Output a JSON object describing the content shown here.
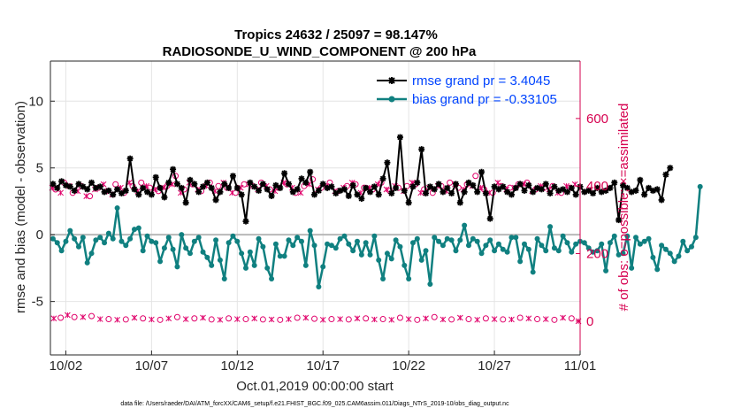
{
  "chart_data": {
    "type": "line",
    "title": "Tropics 24632 / 25097 = 98.147%",
    "subtitle": "RADIOSONDE_U_WIND_COMPONENT @ 200 hPa",
    "xlabel": "Oct.01,2019 00:00:00 start",
    "ylabel": "rmse and bias (model - observation)",
    "y2label": "# of obs: o=possible; ×=assimilated",
    "footer": "data file: /Users/raeder/DAI/ATM_forcXX/CAM6_setup/f.e21.FHIST_BGC.f09_025.CAM6assim.011/Diags_NTrS_2019-10/obs_diag_output.nc",
    "xlim": [
      0.6,
      31.5
    ],
    "ylim": [
      -9,
      13
    ],
    "y2lim": [
      -100,
      770
    ],
    "x_ticks": [
      1.5,
      6.5,
      11.5,
      16.5,
      21.5,
      26.5,
      31.5
    ],
    "x_tick_labels": [
      "10/02",
      "10/07",
      "10/12",
      "10/17",
      "10/22",
      "10/27",
      "11/01"
    ],
    "y_ticks": [
      -5,
      0,
      5,
      10
    ],
    "y_tick_labels": [
      "-5",
      "0",
      "5",
      "10"
    ],
    "y2_ticks": [
      0,
      200,
      400,
      600
    ],
    "y2_tick_labels": [
      "0",
      "200",
      "400",
      "600"
    ],
    "grid": true,
    "legend_position": "top-right",
    "series": [
      {
        "name": "rmse grand pr = 3.4045",
        "color": "#000000",
        "marker": "asterisk",
        "x_start": 0.75,
        "x_step": 0.25,
        "values": [
          3.8,
          3.5,
          4.0,
          3.7,
          3.6,
          3.3,
          3.8,
          3.6,
          3.4,
          3.9,
          3.5,
          3.6,
          3.2,
          3.3,
          3.0,
          3.4,
          3.1,
          3.3,
          5.7,
          3.4,
          3.0,
          3.5,
          3.2,
          3.0,
          4.3,
          3.5,
          2.8,
          3.9,
          4.9,
          3.8,
          3.5,
          2.4,
          4.1,
          3.8,
          3.2,
          3.6,
          3.9,
          3.5,
          2.6,
          3.2,
          3.8,
          3.5,
          4.4,
          3.5,
          3.0,
          1.0,
          3.9,
          3.6,
          3.3,
          3.8,
          3.4,
          2.9,
          3.7,
          3.5,
          4.6,
          3.8,
          3.2,
          3.4,
          4.2,
          3.9,
          4.7,
          3.0,
          3.3,
          3.8,
          3.5,
          3.6,
          3.1,
          3.3,
          3.4,
          2.9,
          3.7,
          3.0,
          2.7,
          3.5,
          3.2,
          3.6,
          3.0,
          4.2,
          5.4,
          3.1,
          3.5,
          7.3,
          3.3,
          2.4,
          3.6,
          3.9,
          6.4,
          3.1,
          3.6,
          3.4,
          3.8,
          3.2,
          3.5,
          3.1,
          3.8,
          2.4,
          3.2,
          3.9,
          3.7,
          3.2,
          4.7,
          3.1,
          1.2,
          3.6,
          3.4,
          3.6,
          3.2,
          3.0,
          3.5,
          3.8,
          3.3,
          3.7,
          3.2,
          3.5,
          3.4,
          3.8,
          3.1,
          3.6,
          3.3,
          3.4,
          3.2,
          3.5,
          3.0,
          3.6,
          3.2,
          3.3,
          3.1,
          3.5,
          3.2,
          3.3,
          3.5,
          3.9,
          1.1,
          3.7,
          3.5,
          3.2,
          3.3,
          4.1,
          3.0,
          3.5,
          3.3,
          3.4,
          2.6,
          4.5,
          5.0
        ]
      },
      {
        "name": "bias grand pr = -0.33105",
        "color": "#108080",
        "marker": "dot",
        "x_start": 0.75,
        "x_step": 0.25,
        "values": [
          -0.3,
          -0.6,
          -1.2,
          -0.5,
          0.3,
          -0.3,
          -0.9,
          -0.2,
          -2.1,
          -1.4,
          -0.4,
          -0.2,
          -0.6,
          0.1,
          -0.3,
          2.0,
          -0.5,
          -0.8,
          -0.3,
          0.4,
          0.5,
          -1.2,
          -0.1,
          -0.5,
          -0.6,
          -2.0,
          -1.0,
          -0.2,
          -1.1,
          -2.4,
          0.0,
          -1.0,
          -1.4,
          -0.5,
          -0.2,
          -1.3,
          -1.7,
          -2.3,
          -0.4,
          -1.9,
          -3.3,
          -0.6,
          -0.1,
          -0.5,
          -1.4,
          -2.5,
          -1.3,
          -2.3,
          -0.3,
          -0.9,
          -2.5,
          -3.3,
          -0.7,
          -1.6,
          -1.6,
          -0.4,
          -0.8,
          -0.2,
          -0.5,
          -2.3,
          0.3,
          -0.8,
          -3.9,
          -2.4,
          -0.7,
          -0.8,
          -1.0,
          -0.3,
          -0.1,
          -0.7,
          -1.2,
          -0.5,
          -1.5,
          -0.6,
          -1.5,
          -0.1,
          -1.9,
          -3.3,
          -1.4,
          -1.8,
          -0.4,
          -0.9,
          -2.3,
          -3.3,
          -0.6,
          -0.3,
          -1.9,
          -1.2,
          -3.7,
          -0.2,
          -0.5,
          -0.8,
          -0.3,
          -0.4,
          -1.2,
          -0.4,
          0.7,
          -0.8,
          -0.3,
          -0.5,
          -1.4,
          -0.8,
          -0.4,
          -1.2,
          -0.7,
          -1.1,
          -1.3,
          -0.2,
          -0.2,
          -2.0,
          -0.7,
          -1.1,
          -2.8,
          -0.3,
          -0.8,
          -1.2,
          0.6,
          -1.0,
          -1.2,
          -0.1,
          -0.6,
          -1.3,
          -0.7,
          -0.5,
          -0.6,
          -1.0,
          -1.3,
          -1.2,
          -0.7,
          -2.7,
          -0.6,
          -0.1,
          -1.5,
          -1.4,
          -0.1,
          -2.5,
          -0.2,
          -0.7,
          -0.5,
          -0.3,
          -1.7,
          -2.6,
          -0.8,
          -1.1,
          -1.4,
          -2.0,
          -1.6,
          -0.5,
          -1.2,
          -0.9,
          -0.2,
          3.6
        ]
      }
    ],
    "obs_possible": {
      "name": "o=possible",
      "color": "#e0006a",
      "x": [
        0.9,
        1.4,
        1.9,
        2.4,
        2.9,
        3.4,
        3.9,
        4.4,
        4.9,
        5.4,
        5.9,
        6.4,
        6.9,
        7.4,
        7.9,
        8.4,
        8.9,
        9.4,
        9.9,
        10.4,
        10.9,
        11.4,
        11.9,
        12.4,
        12.9,
        13.4,
        13.9,
        14.4,
        14.9,
        15.4,
        15.9,
        16.4,
        16.9,
        17.4,
        17.9,
        18.4,
        18.9,
        19.4,
        19.9,
        20.4,
        20.9,
        21.4,
        21.9,
        22.4,
        22.9,
        23.4,
        23.9,
        24.4,
        24.9,
        25.4,
        25.9,
        26.4,
        26.9,
        27.4,
        27.9,
        28.4,
        28.9,
        29.4,
        29.9,
        30.4,
        30.9
      ],
      "values": [
        390,
        410,
        380,
        400,
        370,
        395,
        385,
        405,
        380,
        400,
        410,
        395,
        385,
        400,
        430,
        390,
        405,
        385,
        410,
        400,
        395,
        380,
        405,
        400,
        410,
        390,
        395,
        405,
        380,
        400,
        420,
        395,
        410,
        385,
        400,
        405,
        395,
        390,
        410,
        385,
        395,
        400,
        405,
        390,
        380,
        400,
        410,
        395,
        405,
        430,
        390,
        380,
        400,
        395,
        405,
        410,
        390,
        395,
        400,
        380,
        395
      ]
    },
    "obs_assimilated": {
      "name": "×=assimilated",
      "color": "#e0006a",
      "x": [
        0.7,
        1.2,
        1.7,
        2.2,
        2.7,
        3.2,
        3.7,
        4.2,
        4.7,
        5.2,
        5.7,
        6.2,
        6.7,
        7.2,
        7.7,
        8.2,
        8.7,
        9.2,
        9.7,
        10.2,
        10.7,
        11.2,
        11.7,
        12.2,
        12.7,
        13.2,
        13.7,
        14.2,
        14.7,
        15.2,
        15.7,
        16.2,
        16.7,
        17.2,
        17.7,
        18.2,
        18.7,
        19.2,
        19.7,
        20.2,
        20.7,
        21.2,
        21.7,
        22.2,
        22.7,
        23.2,
        23.7,
        24.2,
        24.7,
        25.2,
        25.7,
        26.2,
        26.7,
        27.2,
        27.7,
        28.2,
        28.7,
        29.2,
        29.7,
        30.2,
        30.7,
        31.2
      ],
      "values": [
        395,
        380,
        400,
        385,
        370,
        390,
        405,
        375,
        395,
        410,
        385,
        400,
        390,
        395,
        405,
        380,
        410,
        390,
        400,
        385,
        410,
        380,
        395,
        405,
        390,
        400,
        385,
        410,
        395,
        380,
        405,
        390,
        400,
        385,
        395,
        410,
        380,
        395,
        405,
        390,
        400,
        385,
        410,
        380,
        395,
        400,
        385,
        405,
        390,
        400,
        395,
        380,
        410,
        390,
        395,
        405,
        385,
        400,
        390,
        380,
        400,
        405
      ]
    },
    "obs_possible_low": {
      "x": [
        1.2,
        2.0,
        3.0,
        4.0,
        5.0,
        6.0,
        7.0,
        8.0,
        9.0,
        10.0,
        11.0,
        12.0,
        13.0,
        14.0,
        15.0,
        16.0,
        17.0,
        18.0,
        19.0,
        20.0,
        21.0,
        22.0,
        23.0,
        24.0,
        25.0,
        26.0,
        27.0,
        28.0,
        29.0,
        30.0,
        31.0
      ],
      "values": [
        10,
        12,
        15,
        6,
        5,
        8,
        4,
        12,
        8,
        5,
        8,
        6,
        5,
        4,
        10,
        7,
        6,
        5,
        8,
        6,
        10,
        4,
        12,
        5,
        6,
        8,
        5,
        10,
        6,
        4,
        8
      ]
    },
    "obs_assimilated_low": {
      "x": [
        0.8,
        1.6,
        2.5,
        3.5,
        4.5,
        5.5,
        6.5,
        7.5,
        8.5,
        9.5,
        10.5,
        11.5,
        12.5,
        13.5,
        14.5,
        15.5,
        16.5,
        17.5,
        18.5,
        19.5,
        20.5,
        21.5,
        22.5,
        23.5,
        24.5,
        25.5,
        26.5,
        27.5,
        28.5,
        29.5,
        30.5,
        31.4
      ],
      "values": [
        8,
        18,
        12,
        6,
        4,
        10,
        5,
        8,
        6,
        10,
        4,
        6,
        8,
        5,
        6,
        10,
        4,
        6,
        8,
        5,
        4,
        6,
        8,
        5,
        10,
        4,
        6,
        5,
        8,
        6,
        10,
        0
      ]
    }
  }
}
